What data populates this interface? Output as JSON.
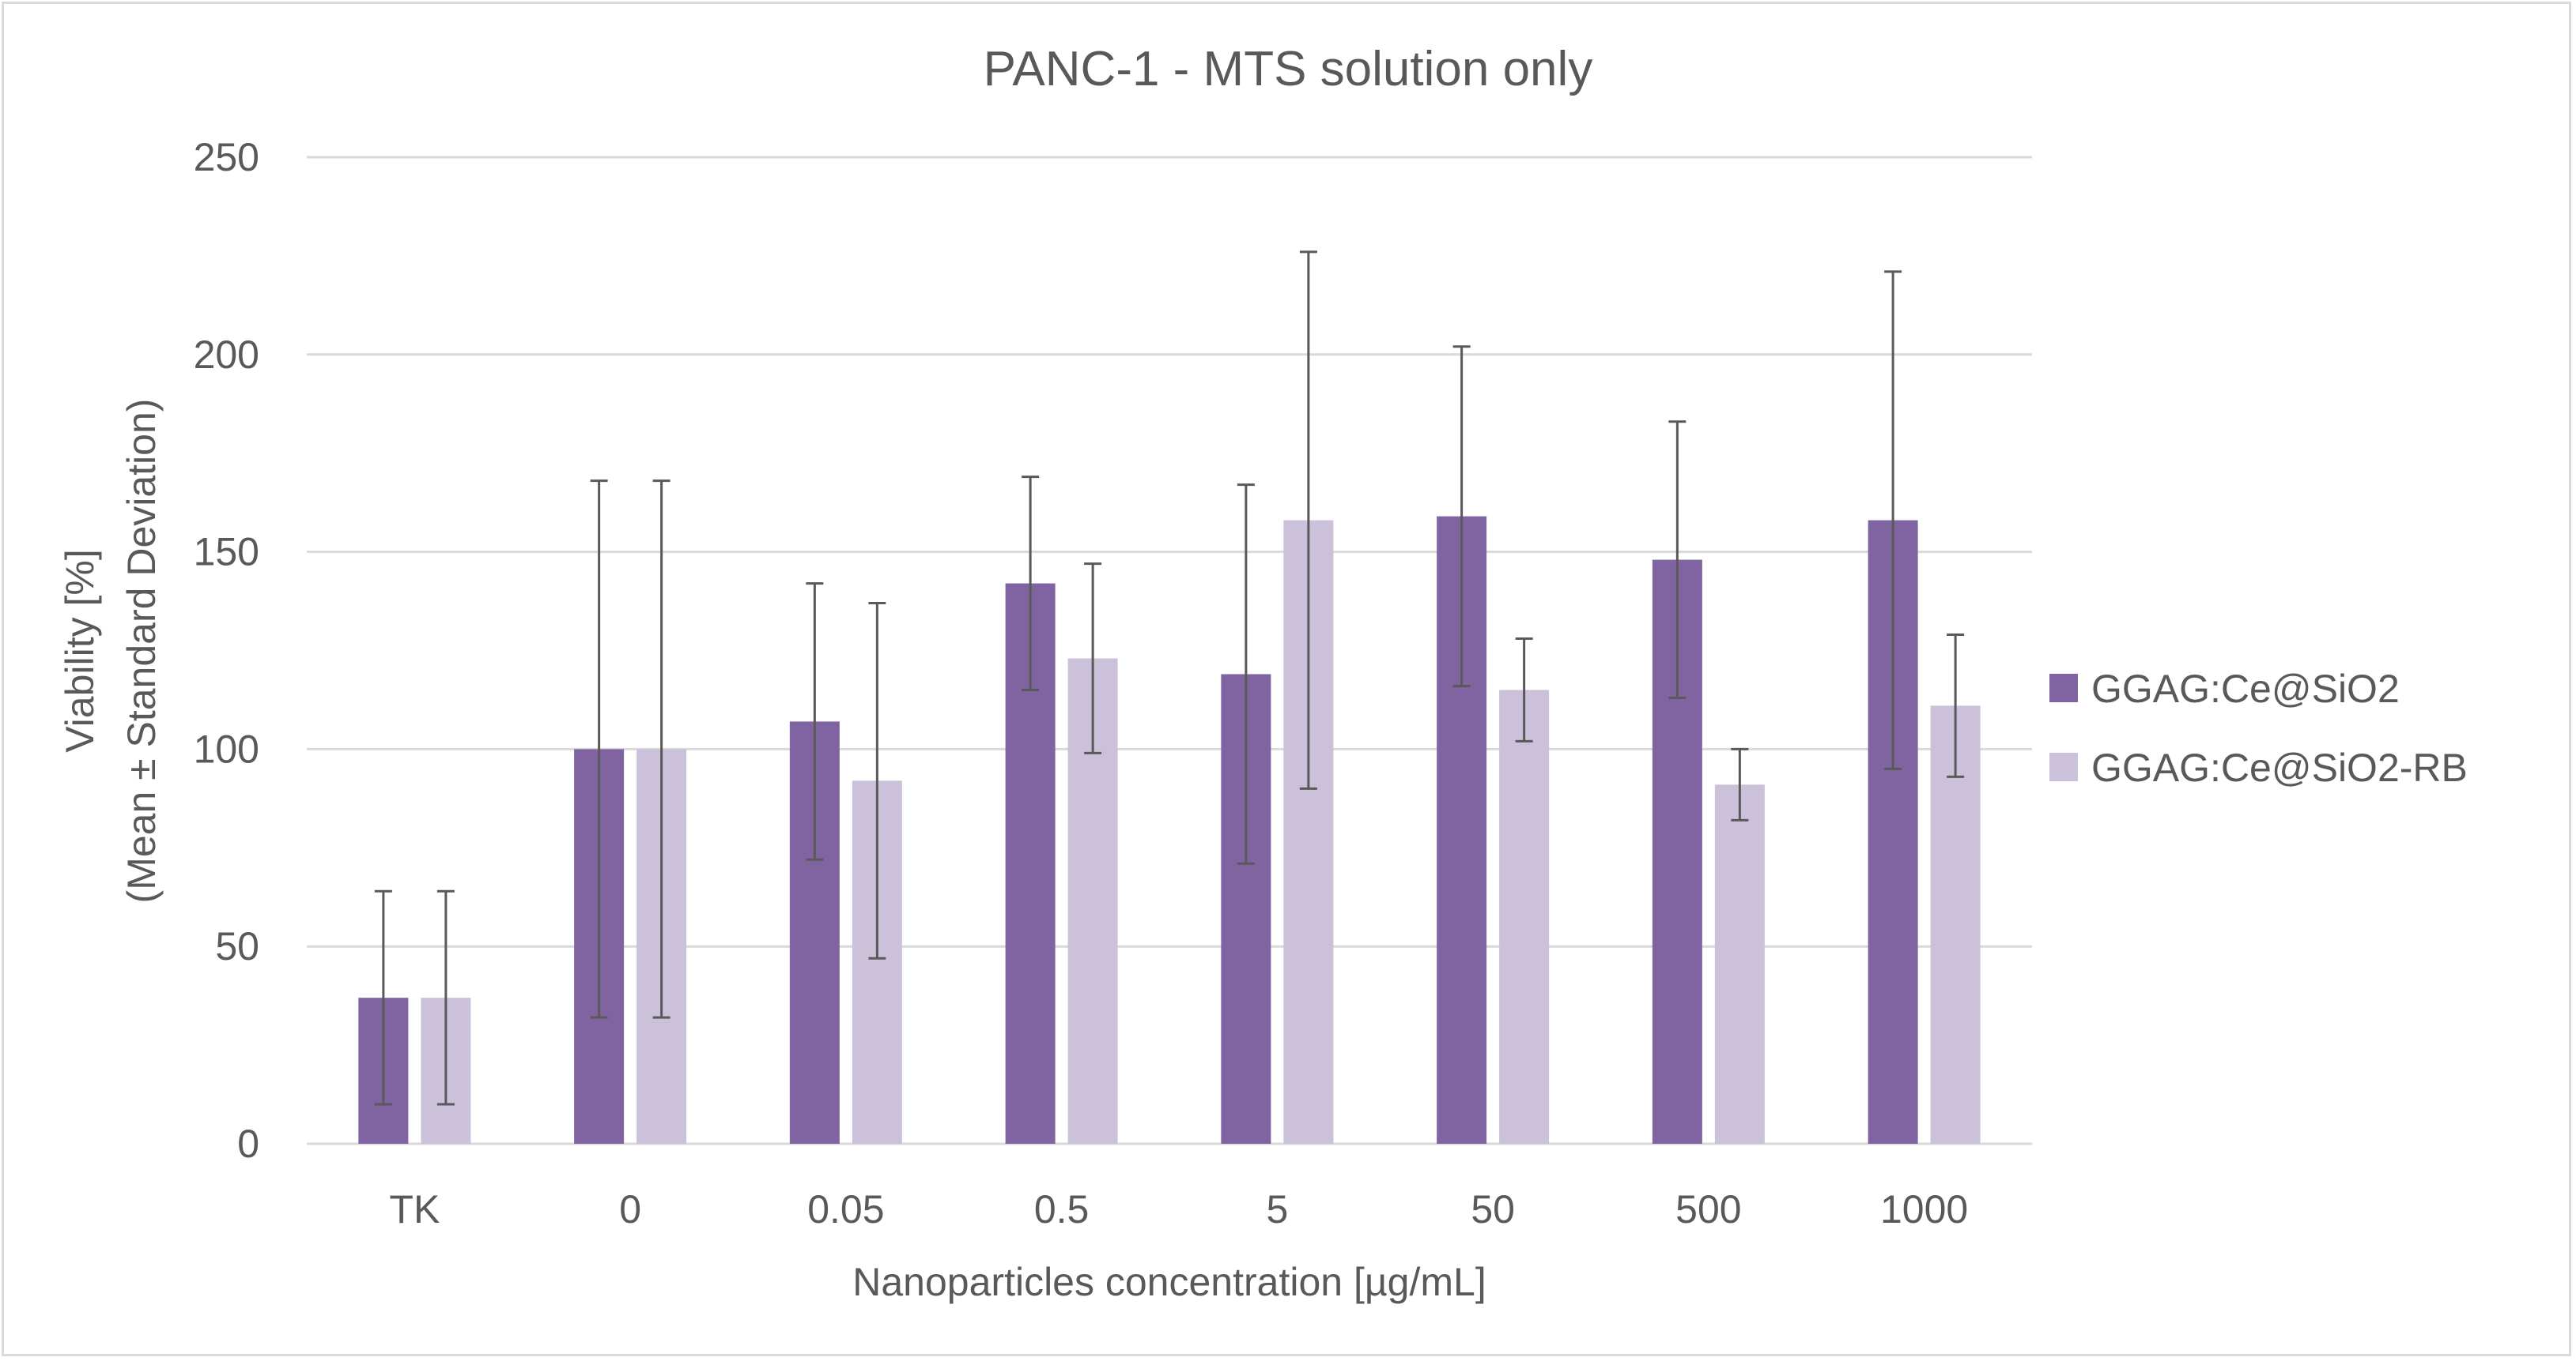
{
  "chart_data": {
    "type": "bar",
    "title": "PANC-1 - MTS solution only",
    "xlabel": "Nanoparticles concentration [µg/mL]",
    "ylabel": [
      "Viability [%]",
      "(Mean ± Standard Deviation)"
    ],
    "categories": [
      "TK",
      "0",
      "0.05",
      "0.5",
      "5",
      "50",
      "500",
      "1000"
    ],
    "ylim": [
      0,
      250
    ],
    "yticks": [
      0,
      50,
      100,
      150,
      200,
      250
    ],
    "grid": true,
    "legend_position": "right",
    "error_bars": "standard deviation",
    "series": [
      {
        "name": "GGAG:Ce@SiO2",
        "color": "#8064a2",
        "values": [
          37,
          100,
          107,
          142,
          119,
          159,
          148,
          158
        ],
        "errors": [
          27,
          68,
          35,
          27,
          48,
          43,
          35,
          63
        ]
      },
      {
        "name": "GGAG:Ce@SiO2-RB",
        "color": "#ccc1da",
        "values": [
          37,
          100,
          92,
          123,
          158,
          115,
          91,
          111
        ],
        "errors": [
          27,
          68,
          45,
          24,
          68,
          13,
          9,
          18
        ]
      }
    ],
    "colors": {
      "gridline": "#d9d9d9",
      "error_bar": "#595959",
      "text": "#595959"
    }
  }
}
